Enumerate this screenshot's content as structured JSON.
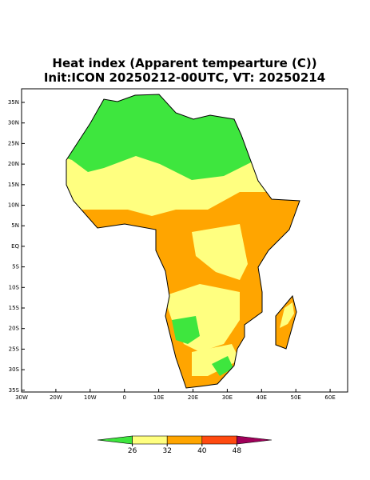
{
  "map": {
    "title": "Heat index (Apparent tempearture (C))",
    "subtitle": "Init:ICON 20250212-00UTC, VT: 20250214",
    "lat_labels": [
      "35N",
      "30N",
      "25N",
      "20N",
      "15N",
      "10N",
      "5N",
      "EQ",
      "5S",
      "10S",
      "15S",
      "20S",
      "25S",
      "30S",
      "35S"
    ],
    "lon_labels": [
      "30W",
      "20W",
      "10W",
      "0",
      "10E",
      "20E",
      "30E",
      "40E",
      "50E",
      "60E"
    ],
    "colorbar": {
      "levels": [
        26,
        32,
        40,
        48
      ],
      "colors": [
        "#3ee63e",
        "#ffff80",
        "#ffa500",
        "#ff4a10",
        "#a0005a"
      ]
    }
  }
}
